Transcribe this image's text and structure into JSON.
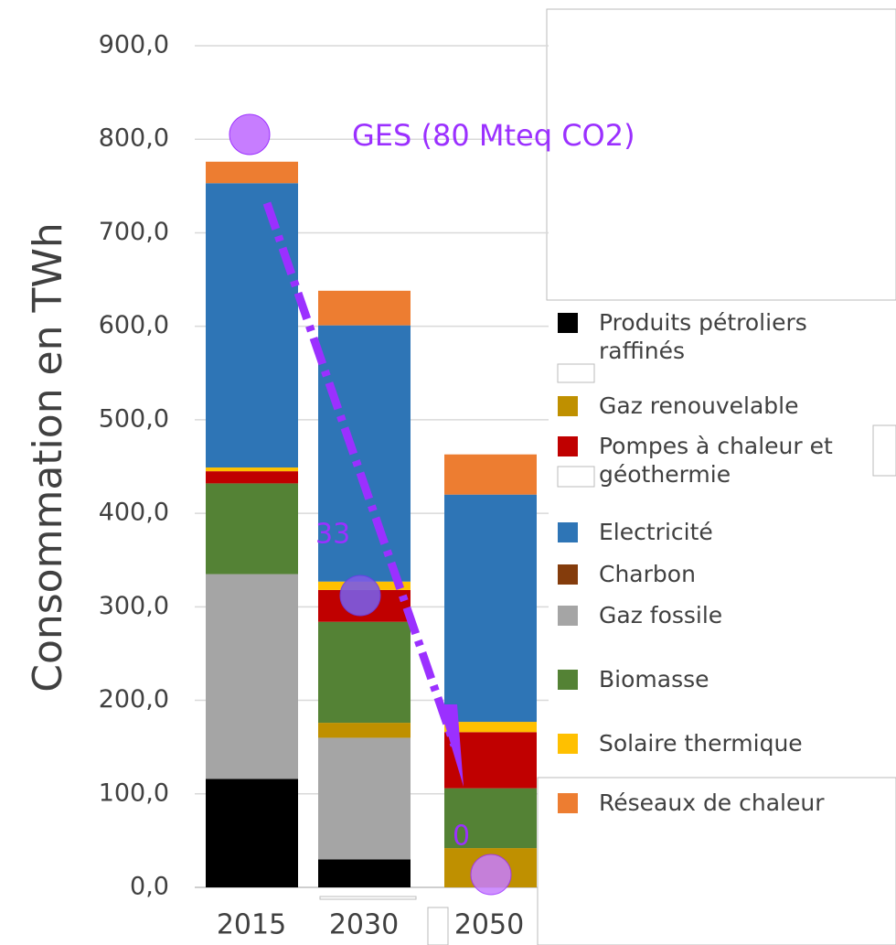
{
  "chart_data": {
    "type": "stacked_bar",
    "y_axis_label": "Consommation en TWh",
    "categories": [
      "2015",
      "2030",
      "2050"
    ],
    "ylim": [
      0,
      900
    ],
    "yticks": [
      {
        "value": 0,
        "label": "0,0"
      },
      {
        "value": 100,
        "label": "100,0"
      },
      {
        "value": 200,
        "label": "200,0"
      },
      {
        "value": 300,
        "label": "300,0"
      },
      {
        "value": 400,
        "label": "400,0"
      },
      {
        "value": 500,
        "label": "500,0"
      },
      {
        "value": 600,
        "label": "600,0"
      },
      {
        "value": 700,
        "label": "700,0"
      },
      {
        "value": 800,
        "label": "800,0"
      },
      {
        "value": 900,
        "label": "900,0"
      }
    ],
    "grid": true,
    "series": [
      {
        "name": "Produits pétroliers raffinés",
        "color": "#000000",
        "values": [
          116,
          30,
          0
        ]
      },
      {
        "name": "Gaz renouvelable",
        "color": "#bf9000",
        "values": [
          0,
          16,
          42
        ]
      },
      {
        "name": "Pompes à chaleur et géothermie",
        "color": "#c00000",
        "values": [
          13,
          34,
          60
        ]
      },
      {
        "name": "Electricité",
        "color": "#2e75b6",
        "values": [
          304,
          274,
          243
        ]
      },
      {
        "name": "Charbon",
        "color": "#843c0c",
        "values": [
          0,
          0,
          0
        ]
      },
      {
        "name": "Gaz fossile",
        "color": "#a5a5a5",
        "values": [
          219,
          130,
          0
        ]
      },
      {
        "name": "Biomasse",
        "color": "#548235",
        "values": [
          97,
          108,
          64
        ]
      },
      {
        "name": "Solaire thermique",
        "color": "#ffc000",
        "values": [
          4,
          9,
          11
        ]
      },
      {
        "name": "Réseaux de chaleur",
        "color": "#ed7d31",
        "values": [
          23,
          37,
          43
        ]
      }
    ],
    "annotations": [
      "GES (80 Mteq CO2)",
      "33",
      "0"
    ]
  }
}
